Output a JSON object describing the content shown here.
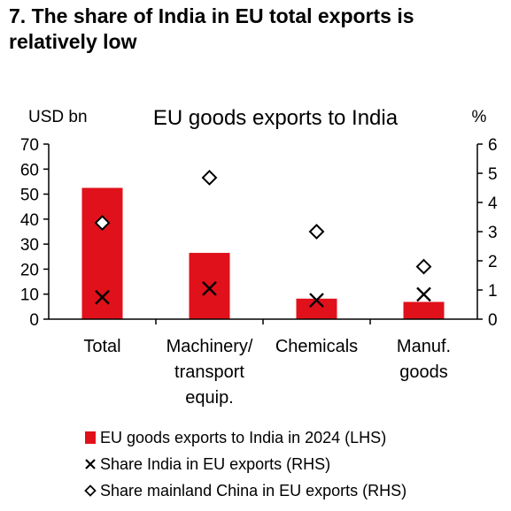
{
  "figure_title": "7. The share of India in EU total exports is relatively low",
  "chart_data": {
    "type": "bar",
    "title": "EU goods exports to India",
    "left_axis_unit": "USD bn",
    "right_axis_unit": "%",
    "categories": [
      "Total",
      "Machinery/ transport equip.",
      "Chemicals",
      "Manuf. goods"
    ],
    "category_label_lines": [
      [
        "Total"
      ],
      [
        "Machinery/",
        "transport",
        "equip."
      ],
      [
        "Chemicals"
      ],
      [
        "Manuf.",
        "goods"
      ]
    ],
    "ylim_left": [
      0,
      70
    ],
    "yticks_left": [
      0,
      10,
      20,
      30,
      40,
      50,
      60,
      70
    ],
    "ylim_right": [
      0,
      6
    ],
    "yticks_right": [
      0,
      1,
      2,
      3,
      4,
      5,
      6
    ],
    "grid": false,
    "legend_position": "bottom",
    "series": [
      {
        "name": "EU goods exports to India in 2024 (LHS)",
        "type": "bar",
        "axis": "left",
        "marker": "bar",
        "color": "#e0111b",
        "values": [
          52.5,
          26.5,
          8.2,
          6.9
        ]
      },
      {
        "name": "Share India in EU exports (RHS)",
        "type": "scatter",
        "axis": "right",
        "marker": "x",
        "color": "#000000",
        "values": [
          0.75,
          1.05,
          0.65,
          0.85
        ]
      },
      {
        "name": "Share mainland China in EU exports (RHS)",
        "type": "scatter",
        "axis": "right",
        "marker": "diamond",
        "color": "#000000",
        "values": [
          3.3,
          4.85,
          3.0,
          1.8
        ]
      }
    ]
  }
}
